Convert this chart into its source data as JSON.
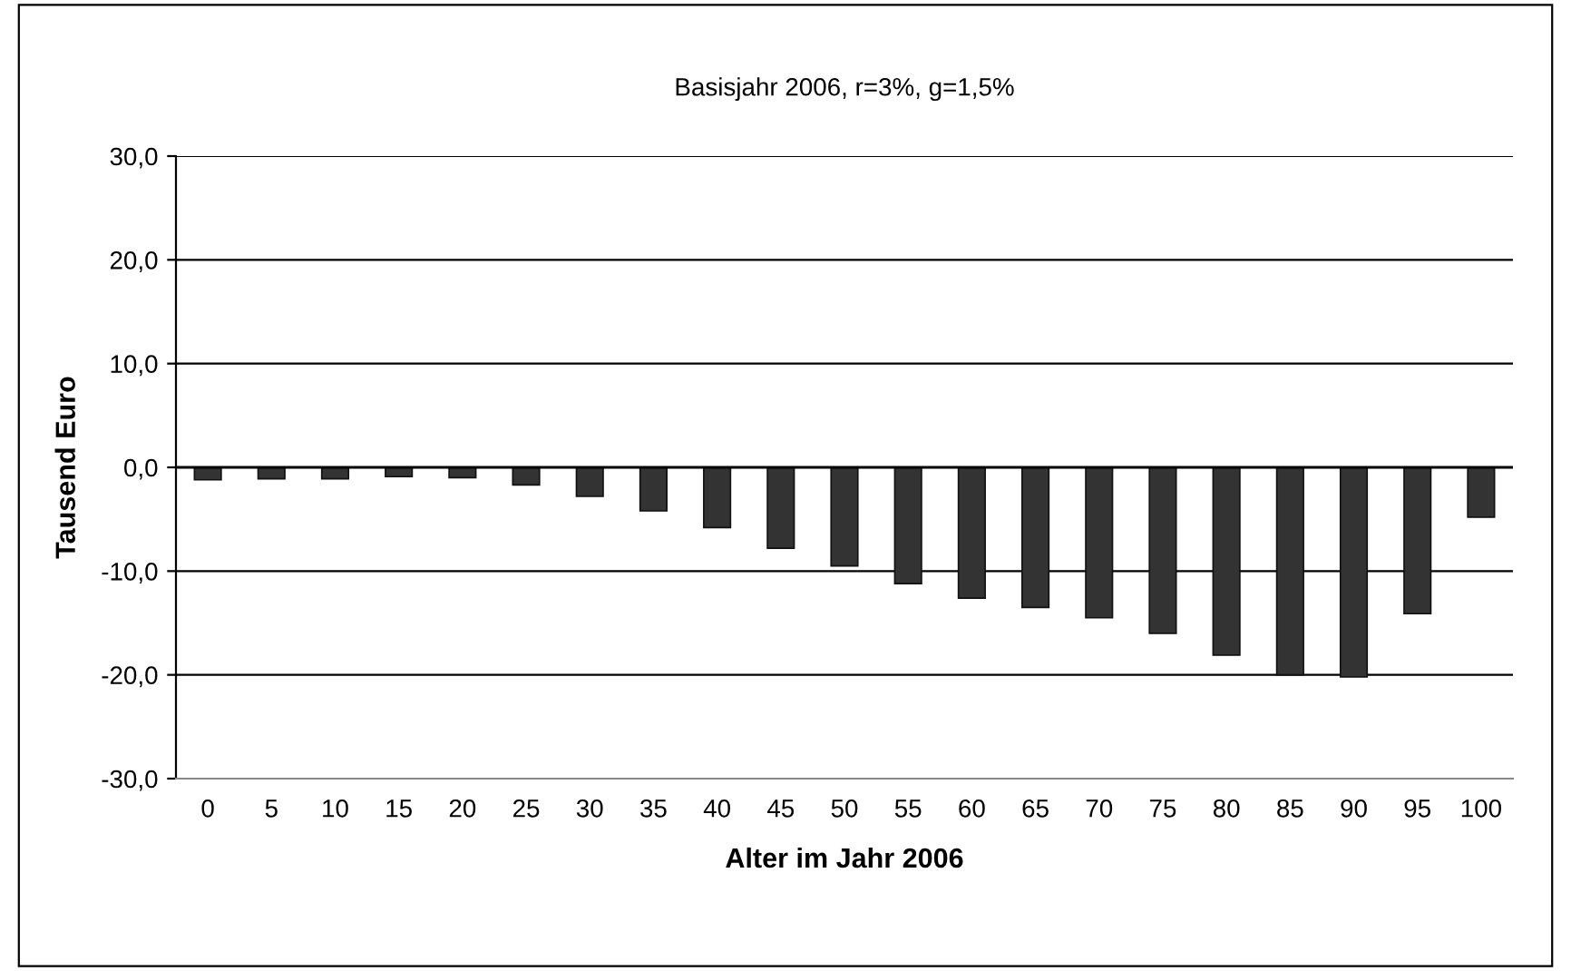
{
  "chart_data": {
    "type": "bar",
    "title": "Basisjahr 2006, r=3%, g=1,5%",
    "xlabel": "Alter im Jahr 2006",
    "ylabel": "Tausend Euro",
    "categories": [
      "0",
      "5",
      "10",
      "15",
      "20",
      "25",
      "30",
      "35",
      "40",
      "45",
      "50",
      "55",
      "60",
      "65",
      "70",
      "75",
      "80",
      "85",
      "90",
      "95",
      "100"
    ],
    "values": [
      -1.2,
      -1.1,
      -1.1,
      -0.9,
      -1.0,
      -1.7,
      -2.8,
      -4.2,
      -5.8,
      -7.8,
      -9.5,
      -11.2,
      -12.6,
      -13.5,
      -14.5,
      -16.0,
      -18.1,
      -20.0,
      -20.2,
      -14.1,
      -4.8
    ],
    "color": "#333333",
    "ylim": [
      -30,
      30
    ],
    "yticks": [
      {
        "value": -30,
        "label": "-30,0"
      },
      {
        "value": -20,
        "label": "-20,0"
      },
      {
        "value": -10,
        "label": "-10,0"
      },
      {
        "value": 0,
        "label": "0,0"
      },
      {
        "value": 10,
        "label": "10,0"
      },
      {
        "value": 20,
        "label": "20,0"
      },
      {
        "value": 30,
        "label": "30,0"
      }
    ],
    "grid": "y"
  }
}
